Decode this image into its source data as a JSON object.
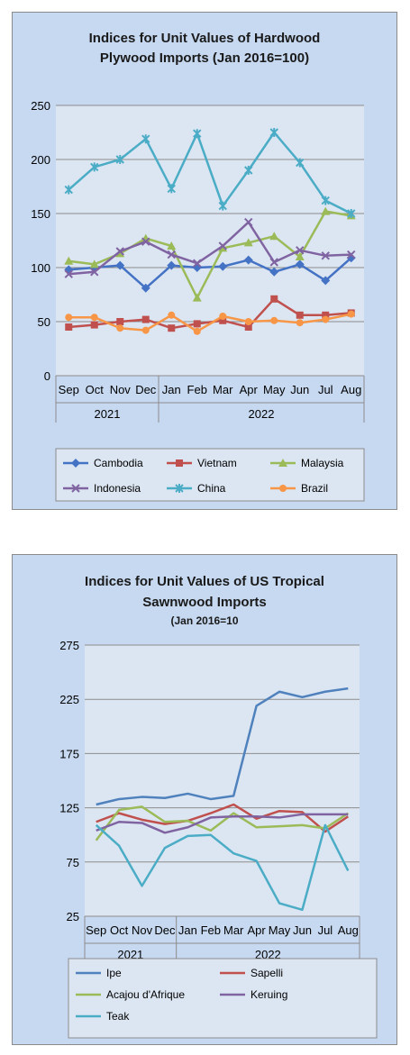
{
  "chart_data": [
    {
      "type": "line",
      "title": "Indices for Unit Values of Hardwood",
      "subtitle": "Plywood Imports (Jan 2016=100)",
      "categories": [
        "Sep",
        "Oct",
        "Nov",
        "Dec",
        "Jan",
        "Feb",
        "Mar",
        "Apr",
        "May",
        "Jun",
        "Jul",
        "Aug"
      ],
      "year_groups": [
        {
          "label": "2021",
          "start": 0,
          "end": 3
        },
        {
          "label": "2022",
          "start": 4,
          "end": 11
        }
      ],
      "ylim": [
        0,
        250
      ],
      "yticks": [
        0,
        50,
        100,
        150,
        200,
        250
      ],
      "grid": true,
      "legend": "bottom",
      "series": [
        {
          "name": "Cambodia",
          "color": "#4472C4",
          "marker": "diamond",
          "values": [
            98,
            100,
            102,
            81,
            102,
            100,
            101,
            107,
            96,
            103,
            88,
            109
          ]
        },
        {
          "name": "Vietnam",
          "color": "#C0504D",
          "marker": "square",
          "values": [
            45,
            47,
            50,
            52,
            44,
            48,
            51,
            45,
            71,
            56,
            56,
            58
          ]
        },
        {
          "name": "Malaysia",
          "color": "#9BBB59",
          "marker": "triangle",
          "values": [
            106,
            103,
            113,
            127,
            120,
            72,
            118,
            123,
            129,
            110,
            152,
            148
          ]
        },
        {
          "name": "Indonesia",
          "color": "#8064A2",
          "marker": "x",
          "values": [
            94,
            96,
            115,
            124,
            112,
            104,
            120,
            142,
            105,
            116,
            111,
            112
          ]
        },
        {
          "name": "China",
          "color": "#4BACC6",
          "marker": "star",
          "values": [
            172,
            193,
            200,
            219,
            173,
            224,
            157,
            190,
            225,
            197,
            162,
            150
          ]
        },
        {
          "name": "Brazil",
          "color": "#F79646",
          "marker": "circle",
          "values": [
            54,
            54,
            44,
            42,
            56,
            41,
            55,
            50,
            51,
            49,
            52,
            57
          ]
        }
      ]
    },
    {
      "type": "line",
      "title": "Indices for Unit Values of US Tropical",
      "subtitle": "Sawnwood Imports",
      "note": "(Jan 2016=10",
      "categories": [
        "Sep",
        "Oct",
        "Nov",
        "Dec",
        "Jan",
        "Feb",
        "Mar",
        "Apr",
        "May",
        "Jun",
        "Jul",
        "Aug"
      ],
      "year_groups": [
        {
          "label": "2021",
          "start": 0,
          "end": 3
        },
        {
          "label": "2022",
          "start": 4,
          "end": 11
        }
      ],
      "ylim": [
        25,
        275
      ],
      "yticks": [
        25,
        75,
        125,
        175,
        225,
        275
      ],
      "grid": true,
      "legend": "bottom",
      "series": [
        {
          "name": "Ipe",
          "color": "#4F81BD",
          "values": [
            128,
            133,
            135,
            134,
            138,
            133,
            136,
            219,
            232,
            227,
            232,
            235
          ]
        },
        {
          "name": "Sapelli",
          "color": "#C0504D",
          "values": [
            112,
            120,
            114,
            110,
            113,
            120,
            128,
            115,
            122,
            121,
            103,
            117
          ]
        },
        {
          "name": "Acajou d'Afrique",
          "color": "#9BBB59",
          "values": [
            95,
            123,
            126,
            112,
            113,
            104,
            120,
            107,
            108,
            109,
            106,
            120
          ]
        },
        {
          "name": "Keruing",
          "color": "#8064A2",
          "values": [
            104,
            112,
            111,
            102,
            107,
            116,
            117,
            117,
            116,
            119,
            119,
            119
          ]
        },
        {
          "name": "Teak",
          "color": "#4BACC6",
          "values": [
            109,
            90,
            53,
            88,
            99,
            100,
            83,
            76,
            37,
            31,
            109,
            67
          ]
        }
      ]
    }
  ]
}
